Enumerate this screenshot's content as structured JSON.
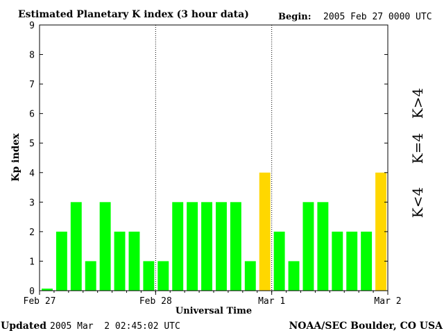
{
  "header": {
    "title": "Estimated Planetary K index (3 hour data)",
    "begin_label": "Begin:",
    "begin_value": "2005 Feb 27 0000 UTC"
  },
  "footer": {
    "updated_label": "Updated",
    "updated_value": "2005 Mar  2 02:45:02 UTC",
    "source": "NOAA/SEC Boulder, CO USA"
  },
  "legend": {
    "below": "K<4",
    "equal": "K=4",
    "above": "K>4"
  },
  "colors": {
    "below": "#00ff00",
    "equal": "#ffd700",
    "above": "#ff2a00"
  },
  "chart_data": {
    "type": "bar",
    "title": "Estimated Planetary K index (3 hour data)",
    "xlabel": "Universal Time",
    "ylabel": "Kp index",
    "ylim": [
      0,
      9
    ],
    "yticks": [
      0,
      1,
      2,
      3,
      4,
      5,
      6,
      7,
      8,
      9
    ],
    "x_tick_labels": [
      "Feb 27",
      "Feb 28",
      "Mar 1",
      "Mar 2"
    ],
    "day_dividers": [
      "Feb 28",
      "Mar 1"
    ],
    "interval_hours": 3,
    "values": [
      0,
      2,
      3,
      1,
      3,
      2,
      2,
      1,
      1,
      3,
      3,
      3,
      3,
      3,
      1,
      4,
      2,
      1,
      3,
      3,
      2,
      2,
      2,
      4
    ]
  }
}
